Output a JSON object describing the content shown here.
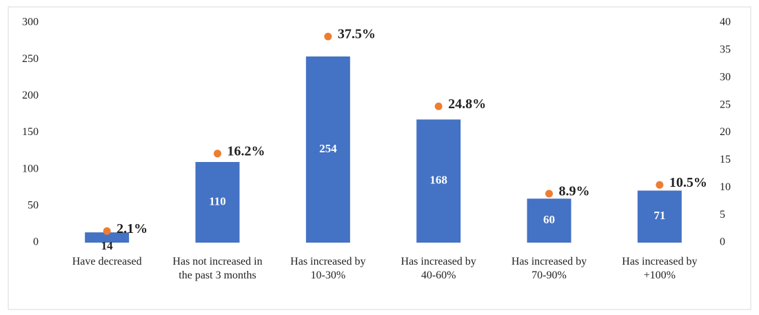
{
  "chart_data": {
    "type": "bar",
    "categories": [
      [
        "Have decreased"
      ],
      [
        "Has not increased in",
        "the past 3 months"
      ],
      [
        "Has increased by",
        "10-30%"
      ],
      [
        "Has increased by",
        "40-60%"
      ],
      [
        "Has increased by",
        "70-90%"
      ],
      [
        "Has increased by",
        "+100%"
      ]
    ],
    "series": [
      {
        "type": "bar",
        "color": "#4472c4",
        "values": [
          14,
          110,
          254,
          168,
          60,
          71
        ]
      },
      {
        "type": "scatter",
        "color": "#ed7d31",
        "axis": "y2",
        "values": [
          2.1,
          16.2,
          37.5,
          24.8,
          8.9,
          10.5
        ],
        "value_labels": [
          "2.1%",
          "16.2%",
          "37.5%",
          "24.8%",
          "8.9%",
          "10.5%"
        ]
      }
    ],
    "ylim": [
      0,
      300
    ],
    "yticks": [
      0,
      50,
      100,
      150,
      200,
      250,
      300
    ],
    "y2lim": [
      0,
      40
    ],
    "y2ticks": [
      0,
      5,
      10,
      15,
      20,
      25,
      30,
      35,
      40
    ],
    "grid": false
  }
}
